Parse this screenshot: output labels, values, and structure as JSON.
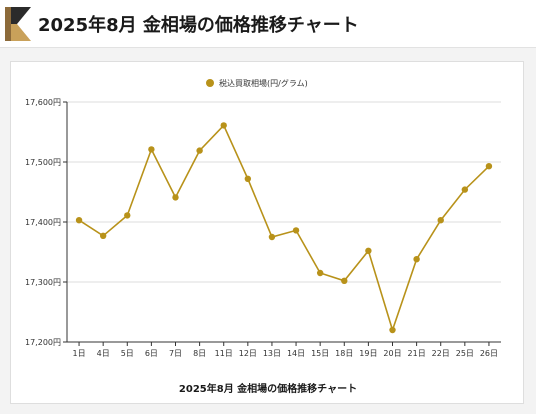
{
  "header": {
    "title": "2025年8月 金相場の価格推移チャート",
    "logo_icon": "chevron-logo-icon",
    "logo_colors": [
      "#2b2b2b",
      "#c9a15a",
      "#8c6a3a"
    ]
  },
  "chart_data": {
    "type": "line",
    "title": "2025年8月 金相場の価格推移チャート",
    "xlabel": "",
    "ylabel": "",
    "categories": [
      "1日",
      "4日",
      "5日",
      "6日",
      "7日",
      "8日",
      "11日",
      "12日",
      "13日",
      "14日",
      "15日",
      "18日",
      "19日",
      "20日",
      "21日",
      "22日",
      "25日",
      "26日"
    ],
    "series": [
      {
        "name": "税込買取相場(円/グラム)",
        "color": "#b8921a",
        "values": [
          17403,
          17377,
          17411,
          17521,
          17441,
          17519,
          17561,
          17472,
          17375,
          17386,
          17315,
          17302,
          17352,
          17220,
          17338,
          17403,
          17454,
          17493
        ]
      }
    ],
    "ylim": [
      17200,
      17600
    ],
    "yticks": [
      17200,
      17300,
      17400,
      17500,
      17600
    ],
    "ytick_labels": [
      "17,200円",
      "17,300円",
      "17,400円",
      "17,500円",
      "17,600円"
    ],
    "legend_position": "top-center",
    "grid": "horizontal"
  }
}
